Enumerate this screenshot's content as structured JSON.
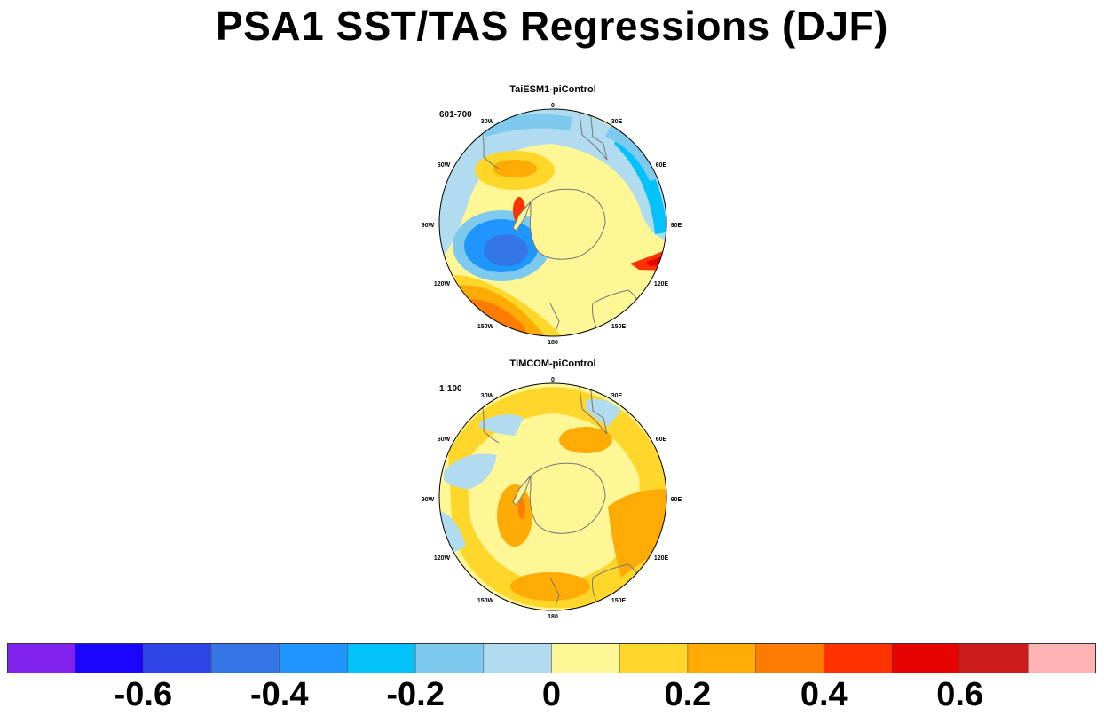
{
  "title": "PSA1 SST/TAS Regressions (DJF)",
  "panels": [
    {
      "title": "TaiESM1-piControl",
      "years": "601-700"
    },
    {
      "title": "TIMCOM-piControl",
      "years": "1-100"
    }
  ],
  "longitude_labels": [
    "0",
    "30E",
    "60E",
    "90E",
    "120E",
    "150E",
    "180",
    "150W",
    "120W",
    "90W",
    "60W",
    "30W"
  ],
  "colorbar": {
    "colors": [
      "#8122ee",
      "#1a06fd",
      "#2e46e8",
      "#3476e6",
      "#1e96fd",
      "#02c2f9",
      "#7ecaef",
      "#b1dcf0",
      "#fff696",
      "#ffd62a",
      "#ffab05",
      "#ff7c02",
      "#ff3200",
      "#e80303",
      "#ce1c1c",
      "#ffb4b4"
    ],
    "labels": [
      "-0.6",
      "-0.4",
      "-0.2",
      "0",
      "0.2",
      "0.4",
      "0.6"
    ]
  }
}
